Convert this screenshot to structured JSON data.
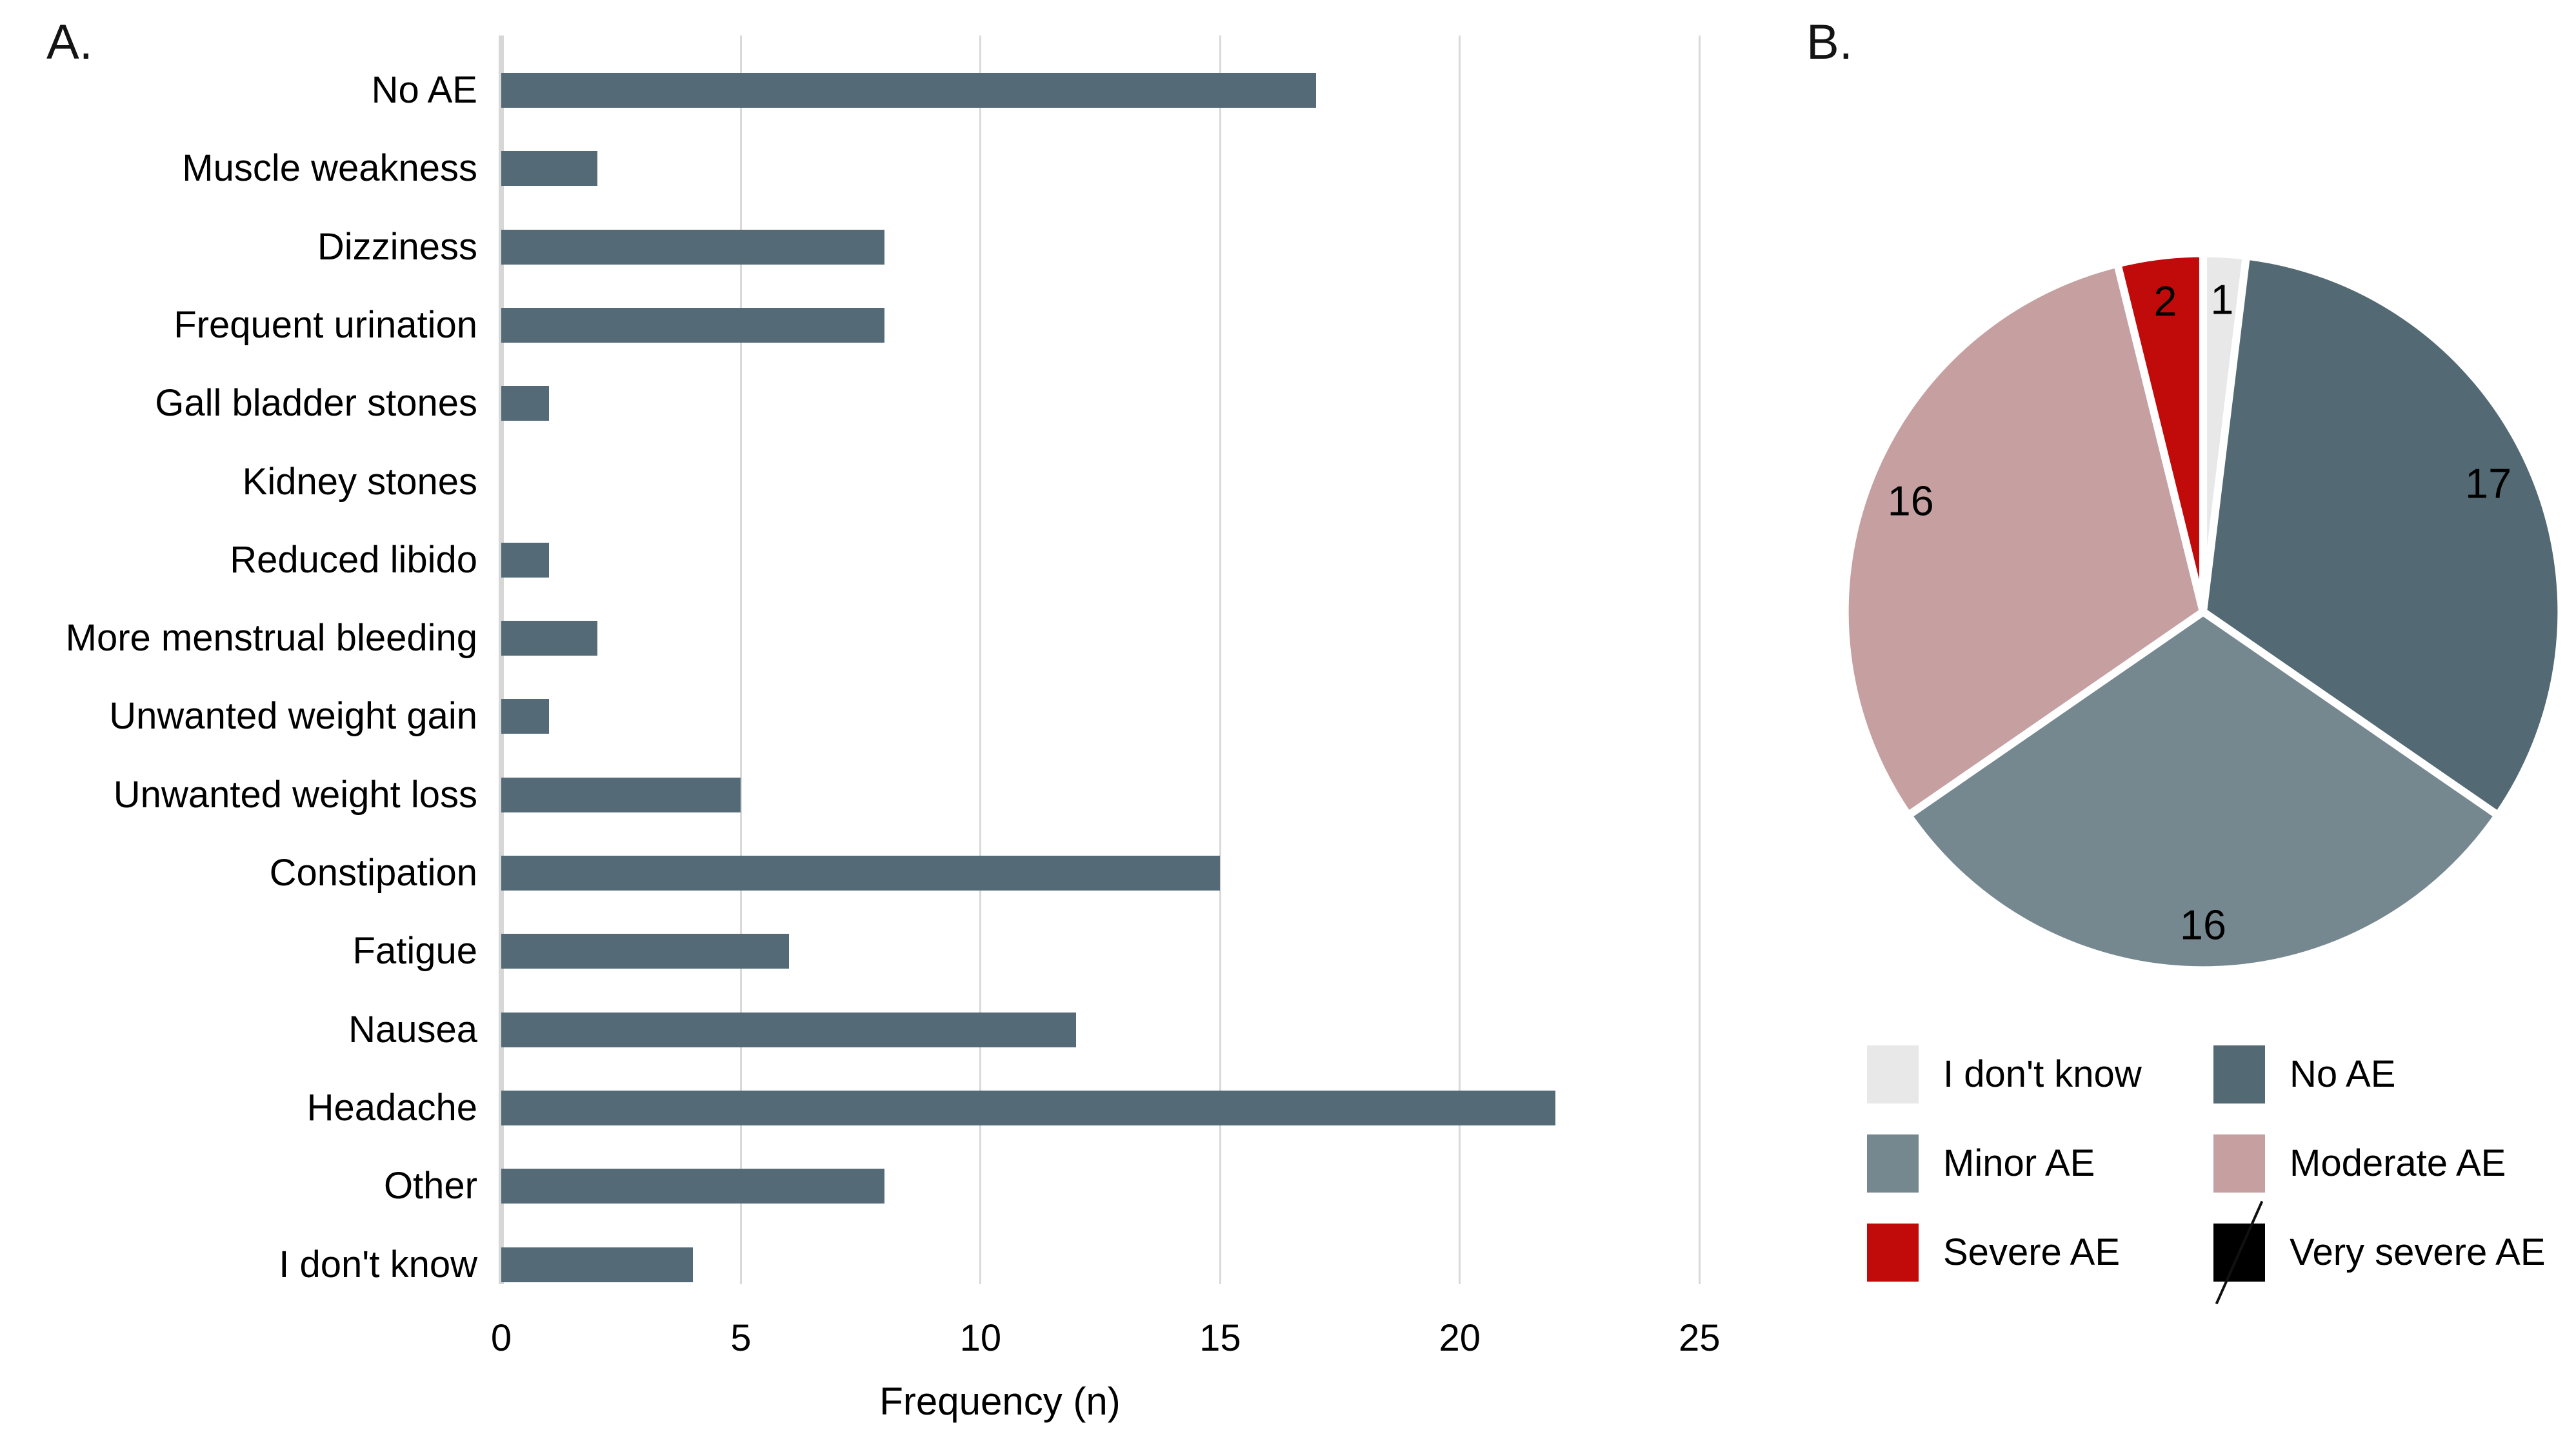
{
  "panels": {
    "a": "A.",
    "b": "B."
  },
  "chart_data": [
    {
      "type": "bar",
      "orientation": "horizontal",
      "panel": "A",
      "xlabel": "Frequency (n)",
      "categories": [
        "No AE",
        "Muscle weakness",
        "Dizziness",
        "Frequent urination",
        "Gall bladder stones",
        "Kidney stones",
        "Reduced libido",
        "More menstrual bleeding",
        "Unwanted weight gain",
        "Unwanted weight loss",
        "Constipation",
        "Fatigue",
        "Nausea",
        "Headache",
        "Other",
        "I don't know"
      ],
      "values": [
        17,
        2,
        8,
        8,
        1,
        0,
        1,
        2,
        1,
        5,
        15,
        6,
        12,
        22,
        8,
        4
      ],
      "xlim": [
        0,
        25
      ],
      "x_ticks": [
        0,
        5,
        10,
        15,
        20,
        25
      ],
      "bar_color": "#546b77",
      "gridline_color": "#d9d9d9",
      "grid": "vertical-only"
    },
    {
      "type": "pie",
      "panel": "B",
      "direction": "clockwise",
      "start_angle_deg_from_top": 0,
      "slices": [
        {
          "label": "I don't know",
          "value": 1,
          "color": "#e8e8e8",
          "value_label": "1"
        },
        {
          "label": "No AE",
          "value": 17,
          "color": "#536973",
          "value_label": "17"
        },
        {
          "label": "Minor AE",
          "value": 16,
          "color": "#76888f",
          "value_label": "16"
        },
        {
          "label": "Moderate AE",
          "value": 16,
          "color": "#c69fa0",
          "value_label": "16"
        },
        {
          "label": "Severe AE",
          "value": 2,
          "color": "#c10a0a",
          "value_label": "2"
        },
        {
          "label": "Very severe AE",
          "value": 0,
          "color": "#000000",
          "value_label": ""
        }
      ],
      "slice_border_color": "#ffffff",
      "legend_position": "bottom",
      "legend": [
        {
          "label": "I don't know",
          "color": "#e8e8e8",
          "slashed": false
        },
        {
          "label": "No AE",
          "color": "#536973",
          "slashed": false
        },
        {
          "label": "Minor AE",
          "color": "#76888f",
          "slashed": false
        },
        {
          "label": "Moderate AE",
          "color": "#c69fa0",
          "slashed": false
        },
        {
          "label": "Severe AE",
          "color": "#c10a0a",
          "slashed": false
        },
        {
          "label": "Very severe AE",
          "color": "#000000",
          "slashed": true
        }
      ]
    }
  ]
}
